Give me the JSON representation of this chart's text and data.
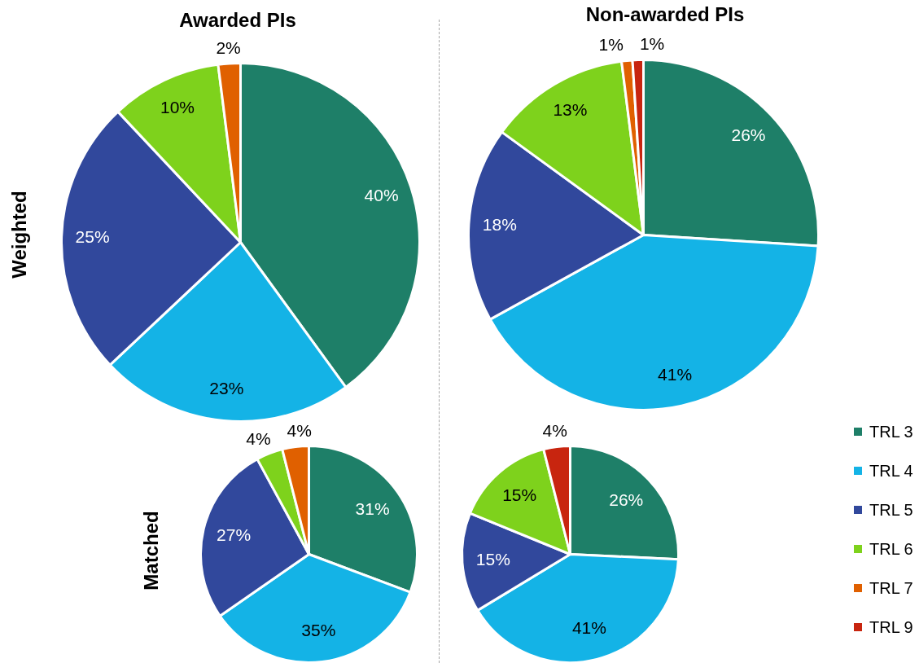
{
  "chart_data": [
    {
      "type": "pie",
      "title": "Awarded PIs",
      "ylabel": "Weighted",
      "categories": [
        null,
        null,
        null,
        null,
        null
      ],
      "values": [
        40,
        23,
        25,
        10,
        2
      ],
      "colors": [
        "#1e7f68",
        "#14b3e6",
        "#31489c",
        "#7ed21c",
        "#e06000"
      ],
      "value_labels": [
        "40%",
        "23%",
        "25%",
        "10%",
        "2%"
      ]
    },
    {
      "type": "pie",
      "title": "Non-awarded PIs",
      "categories": [
        "TRL 3",
        "TRL 4",
        "TRL 5",
        "TRL 6",
        "TRL 7",
        "TRL 9"
      ],
      "values": [
        26,
        41,
        18,
        13,
        1,
        1
      ],
      "colors": [
        "#1e7f68",
        "#14b3e6",
        "#31489c",
        "#7ed21c",
        "#e06000",
        "#c8250f"
      ],
      "value_labels": [
        "26%",
        "41%",
        "18%",
        "13%",
        "1%",
        "1%"
      ],
      "legend": "bottom right"
    },
    {
      "type": "pie",
      "ylabel": "Matched",
      "categories": [
        null,
        null,
        null,
        null,
        null
      ],
      "values": [
        31,
        35,
        27,
        4,
        4
      ],
      "colors": [
        "#1e7f68",
        "#14b3e6",
        "#31489c",
        "#7ed21c",
        "#e06000"
      ],
      "value_labels": [
        "31%",
        "35%",
        "27%",
        "4%",
        "4%"
      ]
    },
    {
      "type": "pie",
      "categories": [
        null,
        null,
        null,
        null,
        null
      ],
      "values": [
        26,
        41,
        15,
        15,
        4
      ],
      "colors": [
        "#1e7f68",
        "#14b3e6",
        "#31489c",
        "#7ed21c",
        "#c8250f"
      ],
      "value_labels": [
        "26%",
        "41%",
        "15%",
        "15%",
        "4%"
      ]
    }
  ]
}
